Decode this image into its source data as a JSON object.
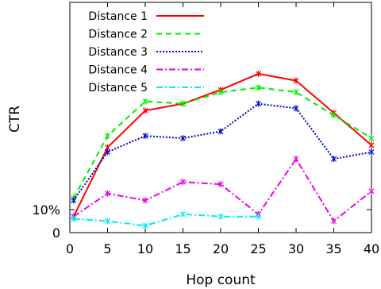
{
  "chart_data": {
    "type": "line",
    "xlabel": "Hop count",
    "ylabel": "CTR",
    "xlim": [
      0,
      40
    ],
    "ylim": [
      0,
      100
    ],
    "x_ticks": [
      "0",
      "5",
      "10",
      "15",
      "20",
      "25",
      "30",
      "35",
      "40"
    ],
    "y_ticks": [
      "0",
      "10%"
    ],
    "legend_position": "top-left",
    "grid": false,
    "series": [
      {
        "name": "Distance 1",
        "color": "#ff0000",
        "dash": "solid",
        "points": [
          [
            0.5,
            7
          ],
          [
            5,
            37
          ],
          [
            10,
            53
          ],
          [
            15,
            56
          ],
          [
            20,
            62
          ],
          [
            25,
            69
          ],
          [
            30,
            66
          ],
          [
            35,
            52
          ],
          [
            40,
            38
          ]
        ]
      },
      {
        "name": "Distance 2",
        "color": "#00ee00",
        "dash": "dashed",
        "points": [
          [
            0.5,
            15
          ],
          [
            5,
            42
          ],
          [
            10,
            57
          ],
          [
            15,
            56
          ],
          [
            20,
            61
          ],
          [
            25,
            63
          ],
          [
            30,
            61
          ],
          [
            35,
            51
          ],
          [
            40,
            41
          ]
        ]
      },
      {
        "name": "Distance 3",
        "color": "#0000cc",
        "dash": "dotted",
        "points": [
          [
            0.5,
            14
          ],
          [
            5,
            35
          ],
          [
            10,
            42
          ],
          [
            15,
            41
          ],
          [
            20,
            44
          ],
          [
            25,
            56
          ],
          [
            30,
            54
          ],
          [
            35,
            32
          ],
          [
            40,
            35
          ]
        ]
      },
      {
        "name": "Distance 4",
        "color": "#ee00ee",
        "dash": "dashdot",
        "points": [
          [
            0.5,
            7
          ],
          [
            5,
            17
          ],
          [
            10,
            14
          ],
          [
            15,
            22
          ],
          [
            20,
            21
          ],
          [
            25,
            8
          ],
          [
            30,
            32
          ],
          [
            35,
            5
          ],
          [
            40,
            18
          ]
        ]
      },
      {
        "name": "Distance 5",
        "color": "#00eeee",
        "dash": "dashdot",
        "points": [
          [
            0.5,
            6
          ],
          [
            5,
            5
          ],
          [
            10,
            3
          ],
          [
            15,
            8
          ],
          [
            20,
            7
          ],
          [
            25,
            7
          ]
        ]
      }
    ]
  }
}
